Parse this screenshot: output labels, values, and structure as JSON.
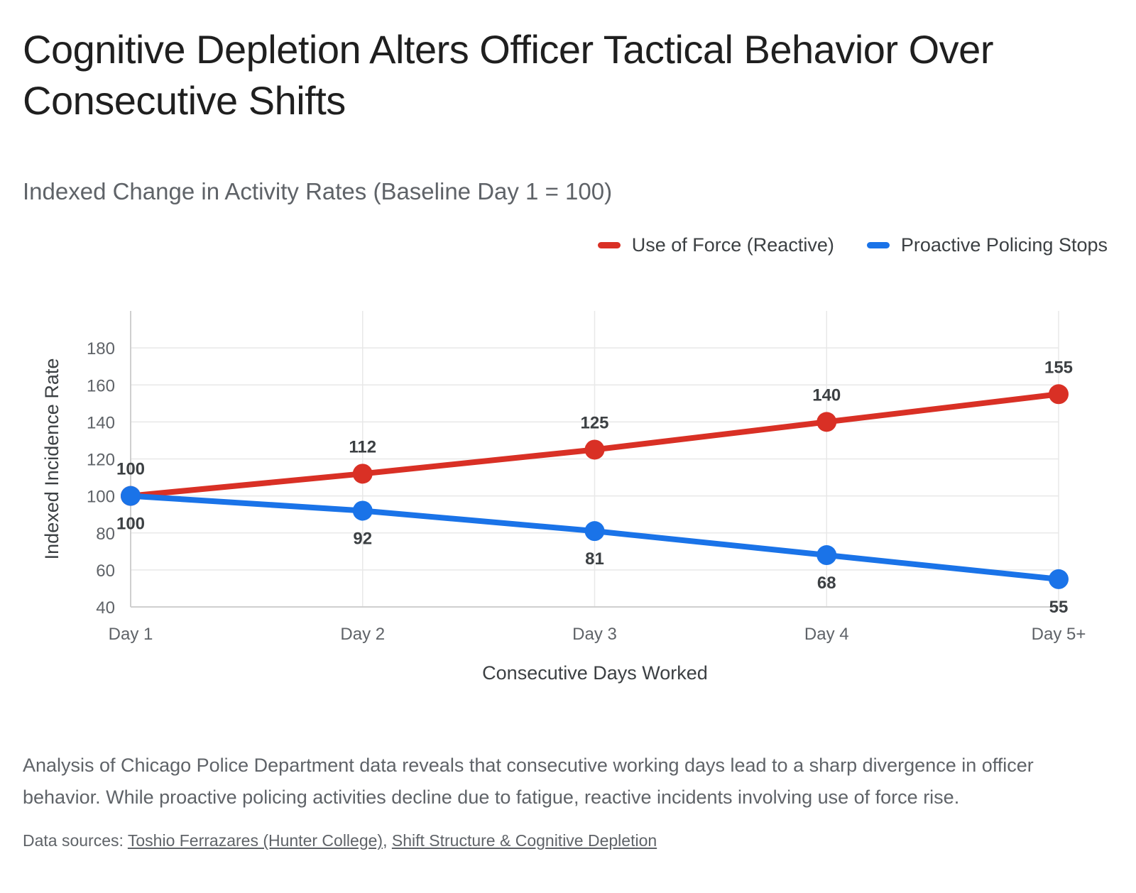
{
  "title": "Cognitive Depletion Alters Officer Tactical Behavior Over Consecutive Shifts",
  "subtitle": "Indexed Change in Activity Rates (Baseline Day 1 = 100)",
  "description": "Analysis of Chicago Police Department data reveals that consecutive working days lead to a sharp divergence in officer behavior. While proactive policing activities decline due to fatigue, reactive incidents involving use of force rise.",
  "sources": {
    "prefix": "Data sources: ",
    "separator": ", ",
    "links": [
      "Toshio Ferrazares (Hunter College)",
      "Shift Structure & Cognitive Depletion"
    ]
  },
  "chart_data": {
    "type": "line",
    "categories": [
      "Day 1",
      "Day 2",
      "Day 3",
      "Day 4",
      "Day 5+"
    ],
    "xlabel": "Consecutive Days Worked",
    "ylabel": "Indexed Incidence Rate",
    "ylim": [
      40,
      200
    ],
    "yticks": [
      40,
      60,
      80,
      100,
      120,
      140,
      160,
      180
    ],
    "grid": true,
    "legend_position": "top-right",
    "series": [
      {
        "name": "Use of Force (Reactive)",
        "color": "#d93025",
        "values": [
          100,
          112,
          125,
          140,
          155
        ],
        "label_position": "above"
      },
      {
        "name": "Proactive Policing Stops",
        "color": "#1a73e8",
        "values": [
          100,
          92,
          81,
          68,
          55
        ],
        "label_position": "below"
      }
    ]
  }
}
